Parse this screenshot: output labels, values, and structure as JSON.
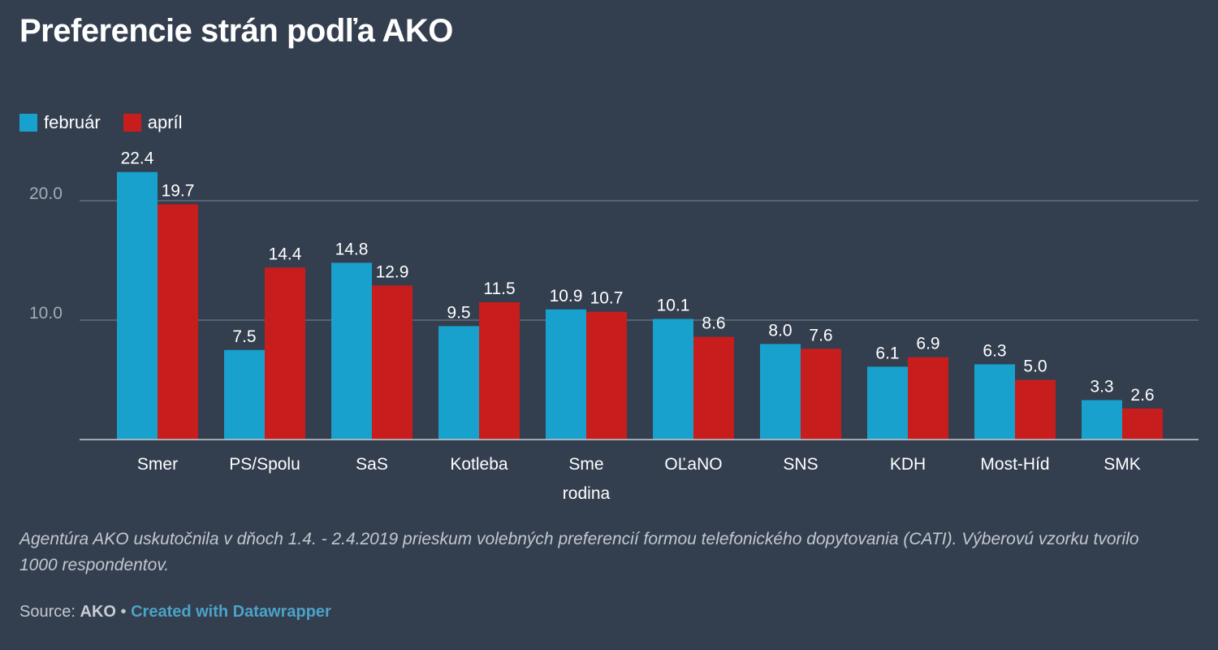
{
  "title": "Preferencie strán podľa AKO",
  "legend": [
    {
      "label": "február",
      "color": "#18a1cd"
    },
    {
      "label": "apríl",
      "color": "#c71e1d"
    }
  ],
  "note": "Agentúra AKO uskutočnila v dňoch 1.4. - 2.4.2019 prieskum volebných preferencií formou telefonického dopytovania (CATI). Výberovú vzorku tvorilo 1000 respondentov.",
  "source": {
    "prefix": "Source:",
    "name": "AKO",
    "separator": "•",
    "credit": "Created with Datawrapper"
  },
  "chart_data": {
    "type": "bar",
    "categories": [
      "Smer",
      "PS/Spolu",
      "SaS",
      "Kotleba",
      "Sme rodina",
      "OĽaNO",
      "SNS",
      "KDH",
      "Most-Híd",
      "SMK"
    ],
    "category_lines": [
      [
        "Smer"
      ],
      [
        "PS/Spolu"
      ],
      [
        "SaS"
      ],
      [
        "Kotleba"
      ],
      [
        "Sme",
        "rodina"
      ],
      [
        "OĽaNO"
      ],
      [
        "SNS"
      ],
      [
        "KDH"
      ],
      [
        "Most-Híd"
      ],
      [
        "SMK"
      ]
    ],
    "series": [
      {
        "name": "február",
        "color": "#18a1cd",
        "values": [
          22.4,
          7.5,
          14.8,
          9.5,
          10.9,
          10.1,
          8.0,
          6.1,
          6.3,
          3.3
        ],
        "labels": [
          "22.4",
          "7.5",
          "14.8",
          "9.5",
          "10.9",
          "10.1",
          "8.0",
          "6.1",
          "6.3",
          "3.3"
        ]
      },
      {
        "name": "apríl",
        "color": "#c71e1d",
        "values": [
          19.7,
          14.4,
          12.9,
          11.5,
          10.7,
          8.6,
          7.6,
          6.9,
          5.0,
          2.6
        ],
        "labels": [
          "19.7",
          "14.4",
          "12.9",
          "11.5",
          "10.7",
          "8.6",
          "7.6",
          "6.9",
          "5.0",
          "2.6"
        ]
      }
    ],
    "yticks": [
      10,
      20
    ],
    "ytick_labels": [
      "10.0",
      "20.0"
    ],
    "ylim": [
      0,
      25
    ],
    "grid": true,
    "legend_position": "top-left",
    "xlabel": "",
    "ylabel": ""
  }
}
